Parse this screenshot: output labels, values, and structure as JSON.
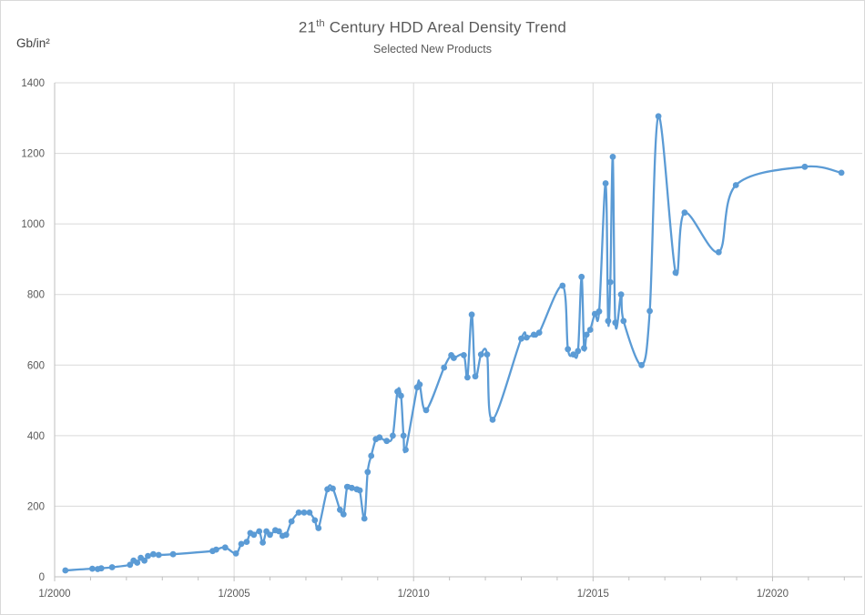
{
  "header": {
    "title_num": "21",
    "title_sup": "th",
    "title_rest": " Century HDD Areal Density Trend",
    "subtitle": "Selected New Products",
    "y_unit_label": "Gb/in²"
  },
  "colors": {
    "line": "#5B9BD5",
    "marker": "#5B9BD5",
    "gridline": "#D9D9D9",
    "axis": "#BFBFBF",
    "tick": "#BFBFBF",
    "tick_label": "#595959",
    "title": "#595959",
    "unit_label": "#3F3F3F",
    "background": "#FFFFFF",
    "border": "#D9D9D9"
  },
  "chart_data": {
    "type": "line",
    "title": "21th Century HDD Areal Density Trend",
    "subtitle": "Selected New Products",
    "ylabel": "Gb/in²",
    "xlabel": "",
    "grid": true,
    "legend_position": "none",
    "xlim": [
      2000,
      2022.5
    ],
    "ylim": [
      0,
      1400
    ],
    "y_ticks": [
      0,
      200,
      400,
      600,
      800,
      1000,
      1200,
      1400
    ],
    "x_major_ticks": [
      2000,
      2005,
      2010,
      2015,
      2020
    ],
    "x_tick_labels": [
      "1/2000",
      "1/2005",
      "1/2010",
      "1/2015",
      "1/2020"
    ],
    "x_minor_step": 1,
    "series": [
      {
        "name": "HDD areal density (Gb/in²)",
        "smooth": true,
        "points": [
          [
            2000.3,
            18
          ],
          [
            2001.05,
            23
          ],
          [
            2001.2,
            22
          ],
          [
            2001.3,
            24
          ],
          [
            2001.6,
            27
          ],
          [
            2002.1,
            34
          ],
          [
            2002.2,
            46
          ],
          [
            2002.3,
            40
          ],
          [
            2002.4,
            54
          ],
          [
            2002.5,
            46
          ],
          [
            2002.6,
            59
          ],
          [
            2002.75,
            64
          ],
          [
            2002.9,
            62
          ],
          [
            2003.3,
            64
          ],
          [
            2004.4,
            73
          ],
          [
            2004.5,
            77
          ],
          [
            2004.75,
            83
          ],
          [
            2005.05,
            66
          ],
          [
            2005.2,
            93
          ],
          [
            2005.35,
            99
          ],
          [
            2005.45,
            124
          ],
          [
            2005.55,
            119
          ],
          [
            2005.7,
            129
          ],
          [
            2005.8,
            97
          ],
          [
            2005.9,
            129
          ],
          [
            2006.0,
            119
          ],
          [
            2006.15,
            132
          ],
          [
            2006.25,
            129
          ],
          [
            2006.35,
            116
          ],
          [
            2006.45,
            119
          ],
          [
            2006.6,
            157
          ],
          [
            2006.8,
            182
          ],
          [
            2006.95,
            182
          ],
          [
            2007.1,
            182
          ],
          [
            2007.25,
            160
          ],
          [
            2007.35,
            138
          ],
          [
            2007.6,
            248
          ],
          [
            2007.75,
            250
          ],
          [
            2007.95,
            190
          ],
          [
            2008.05,
            177
          ],
          [
            2008.15,
            255
          ],
          [
            2008.28,
            252
          ],
          [
            2008.42,
            248
          ],
          [
            2008.5,
            245
          ],
          [
            2008.63,
            165
          ],
          [
            2008.72,
            297
          ],
          [
            2008.82,
            343
          ],
          [
            2008.95,
            390
          ],
          [
            2009.05,
            395
          ],
          [
            2009.25,
            385
          ],
          [
            2009.42,
            400
          ],
          [
            2009.55,
            525
          ],
          [
            2009.65,
            513
          ],
          [
            2009.72,
            400
          ],
          [
            2009.78,
            360
          ],
          [
            2010.1,
            537
          ],
          [
            2010.17,
            545
          ],
          [
            2010.35,
            472
          ],
          [
            2010.85,
            593
          ],
          [
            2011.05,
            628
          ],
          [
            2011.12,
            620
          ],
          [
            2011.4,
            628
          ],
          [
            2011.5,
            565
          ],
          [
            2011.62,
            743
          ],
          [
            2011.72,
            568
          ],
          [
            2011.88,
            630
          ],
          [
            2012.05,
            630
          ],
          [
            2012.2,
            445
          ],
          [
            2013.0,
            675
          ],
          [
            2013.15,
            678
          ],
          [
            2013.35,
            686
          ],
          [
            2013.5,
            692
          ],
          [
            2014.15,
            825
          ],
          [
            2014.3,
            645
          ],
          [
            2014.45,
            630
          ],
          [
            2014.58,
            640
          ],
          [
            2014.68,
            850
          ],
          [
            2014.75,
            648
          ],
          [
            2014.82,
            686
          ],
          [
            2014.92,
            700
          ],
          [
            2015.05,
            745
          ],
          [
            2015.17,
            752
          ],
          [
            2015.35,
            1115
          ],
          [
            2015.42,
            725
          ],
          [
            2015.48,
            835
          ],
          [
            2015.55,
            1190
          ],
          [
            2015.62,
            720
          ],
          [
            2015.78,
            800
          ],
          [
            2015.85,
            725
          ],
          [
            2016.35,
            600
          ],
          [
            2016.58,
            753
          ],
          [
            2016.82,
            1305
          ],
          [
            2017.3,
            862
          ],
          [
            2017.55,
            1032
          ],
          [
            2018.5,
            920
          ],
          [
            2018.98,
            1110
          ],
          [
            2020.9,
            1162
          ],
          [
            2021.92,
            1145
          ]
        ]
      }
    ]
  }
}
